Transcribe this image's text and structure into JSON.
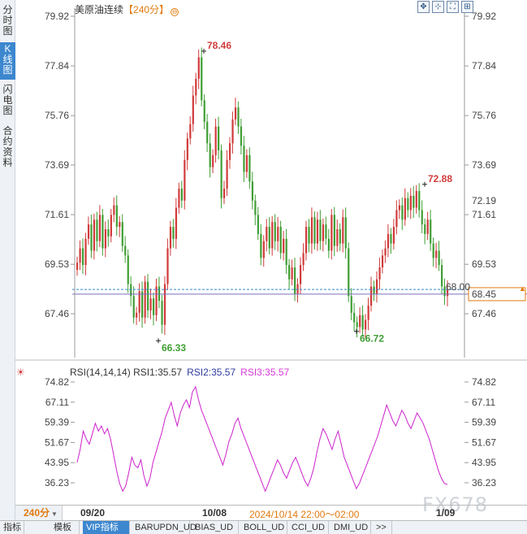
{
  "side_tabs": [
    {
      "label": "分时图",
      "active": false
    },
    {
      "label": "K线图",
      "active": true
    },
    {
      "label": "闪电图",
      "active": false
    },
    {
      "label": "合约资料",
      "active": false
    }
  ],
  "header": {
    "instrument": "美原油连续",
    "period": "【240分】",
    "circle_icon": "⊖"
  },
  "toolbar": {
    "buttons": [
      {
        "name": "move-icon",
        "glyph": "✥"
      },
      {
        "name": "crosshair-icon",
        "glyph": "⊹"
      },
      {
        "name": "fullscreen-icon",
        "glyph": "⛶"
      },
      {
        "name": "settings-icon",
        "glyph": "⊞"
      }
    ]
  },
  "price_axis": {
    "ticks": [
      "79.92",
      "77.84",
      "75.76",
      "73.69",
      "71.61",
      "69.53",
      "67.46"
    ],
    "current_label": "72.19",
    "last_price": "68.45",
    "crosshair_price": "68.00"
  },
  "peak_labels": {
    "high1": "78.46",
    "high2": "72.88",
    "low1": "66.33",
    "low2": "66.72"
  },
  "rsi": {
    "title": "RSI(14,14,14)",
    "rsi1": "RSI1:35.57",
    "rsi2": "RSI2:35.57",
    "rsi3": "RSI3:35.57",
    "ticks": [
      "74.82",
      "67.11",
      "59.39",
      "51.67",
      "43.95",
      "36.23"
    ]
  },
  "date_axis": {
    "period_select": "240分",
    "labels": [
      "09/20",
      "10/08",
      "1/09"
    ],
    "crosshair_time": "2024/10/14 22:00～02:00"
  },
  "watermark": "FX678",
  "bottom_tabs": [
    "指标",
    "模板",
    "VIP指标",
    "BARUPDN_UD",
    "BIAS_UD",
    "BOLL_UD",
    "CCI_UD",
    "DMI_UD",
    ">>"
  ],
  "colors": {
    "up": "#d13b3b",
    "down": "#3f9e34",
    "rsi_line": "#cc22cc",
    "accent": "#e07a10",
    "crosshair": "#3399cc"
  },
  "chart_data": {
    "type": "candlestick",
    "title": "美原油连续【240分】",
    "ylim": [
      66.0,
      80.5
    ],
    "notable_prices": {
      "max": 78.46,
      "local_high": 72.88,
      "min": 66.33,
      "local_low": 66.72,
      "last": 68.45
    },
    "close_path": [
      69.6,
      70.2,
      69.5,
      70.6,
      71.2,
      70.1,
      71.4,
      70.5,
      71.6,
      70.2,
      71.0,
      70.7,
      71.6,
      72.0,
      71.1,
      71.3,
      70.3,
      69.9,
      68.7,
      68.2,
      67.3,
      67.5,
      68.4,
      67.3,
      68.8,
      67.6,
      68.1,
      67.4,
      68.6,
      68.0,
      67.0,
      68.7,
      70.2,
      71.1,
      70.6,
      71.9,
      72.7,
      72.2,
      73.9,
      74.8,
      75.4,
      76.6,
      77.3,
      78.2,
      76.4,
      75.5,
      74.6,
      73.6,
      74.1,
      75.3,
      74.3,
      72.3,
      72.7,
      73.9,
      74.6,
      75.6,
      76.1,
      75.3,
      74.5,
      73.4,
      74.1,
      73.0,
      72.2,
      71.6,
      70.8,
      69.8,
      70.5,
      71.1,
      70.2,
      71.3,
      70.5,
      71.1,
      70.0,
      70.6,
      69.5,
      68.9,
      69.4,
      68.3,
      68.7,
      69.5,
      70.0,
      71.1,
      70.4,
      71.5,
      70.4,
      71.4,
      70.5,
      71.2,
      70.6,
      70.1,
      71.6,
      70.3,
      71.0,
      70.4,
      71.5,
      70.2,
      68.2,
      67.5,
      67.1,
      66.9,
      67.4,
      66.8,
      67.2,
      67.8,
      68.6,
      68.3,
      68.9,
      69.4,
      69.9,
      70.2,
      70.8,
      70.4,
      71.1,
      71.8,
      72.0,
      71.4,
      72.3,
      71.8,
      72.4,
      71.9,
      72.6,
      71.8,
      71.2,
      70.8,
      71.4,
      70.4,
      69.8,
      70.1,
      69.5,
      68.6,
      68.2,
      68.45
    ],
    "rsi_values": [
      44,
      49,
      56,
      53,
      51,
      55,
      59,
      56,
      58,
      55,
      57,
      53,
      47,
      41,
      36,
      33,
      35,
      40,
      46,
      43,
      42,
      45,
      39,
      35,
      38,
      44,
      48,
      52,
      56,
      61,
      64,
      67,
      62,
      58,
      63,
      66,
      68,
      65,
      71,
      73,
      68,
      64,
      61,
      58,
      55,
      52,
      49,
      46,
      43,
      47,
      52,
      55,
      59,
      61,
      57,
      54,
      51,
      48,
      45,
      42,
      39,
      36,
      33,
      36,
      39,
      42,
      45,
      43,
      40,
      38,
      41,
      44,
      46,
      43,
      40,
      37,
      35,
      38,
      42,
      48,
      53,
      57,
      55,
      52,
      49,
      53,
      56,
      51,
      46,
      43,
      40,
      37,
      34,
      36,
      39,
      42,
      45,
      48,
      51,
      54,
      58,
      62,
      66,
      63,
      60,
      58,
      61,
      64,
      62,
      59,
      57,
      60,
      63,
      61,
      59,
      56,
      53,
      49,
      45,
      41,
      38,
      36,
      35.57
    ]
  }
}
